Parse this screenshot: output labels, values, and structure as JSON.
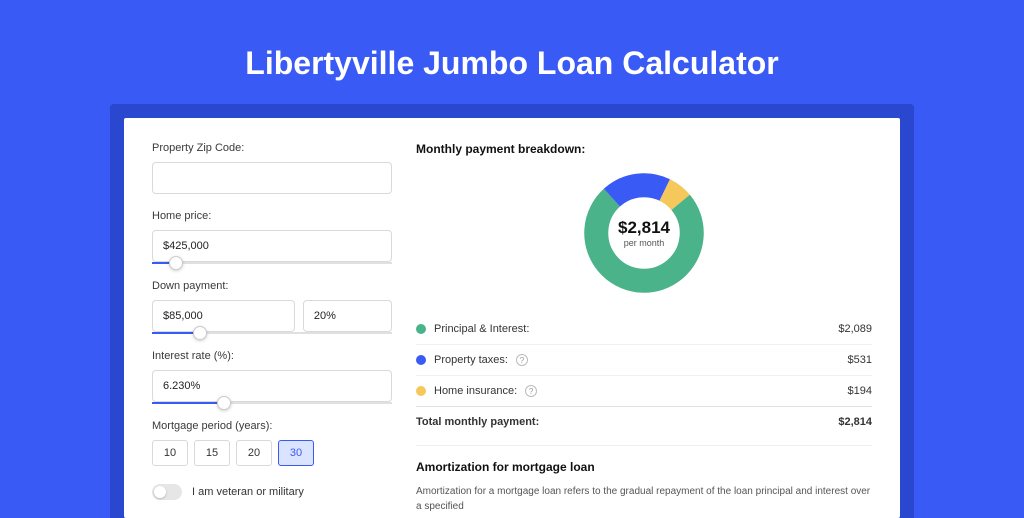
{
  "title": "Libertyville Jumbo Loan Calculator",
  "colors": {
    "page_bg": "#3a5af5",
    "band_bg": "#2a47d0",
    "card_bg": "#ffffff",
    "accent": "#3a5af5",
    "border": "#d9d9d9",
    "text": "#333333"
  },
  "form": {
    "zip": {
      "label": "Property Zip Code:",
      "value": ""
    },
    "home_price": {
      "label": "Home price:",
      "value": "$425,000",
      "slider_pct": 10
    },
    "down_payment": {
      "label": "Down payment:",
      "amount": "$85,000",
      "percent": "20%",
      "slider_pct": 20
    },
    "interest_rate": {
      "label": "Interest rate (%):",
      "value": "6.230%",
      "slider_pct": 30
    },
    "mortgage_period": {
      "label": "Mortgage period (years):",
      "options": [
        "10",
        "15",
        "20",
        "30"
      ],
      "active": "30"
    },
    "veteran_toggle": {
      "label": "I am veteran or military",
      "on": false
    }
  },
  "breakdown": {
    "heading": "Monthly payment breakdown:",
    "donut": {
      "total_label": "$2,814",
      "sub_label": "per month",
      "slices": [
        {
          "name": "principal_interest",
          "value": 2089,
          "color": "#4ab38a"
        },
        {
          "name": "property_taxes",
          "value": 531,
          "color": "#3a5af5"
        },
        {
          "name": "home_insurance",
          "value": 194,
          "color": "#f5c85b"
        }
      ]
    },
    "rows": [
      {
        "label": "Principal & Interest:",
        "value": "$2,089",
        "color": "#4ab38a",
        "info": false
      },
      {
        "label": "Property taxes:",
        "value": "$531",
        "color": "#3a5af5",
        "info": true
      },
      {
        "label": "Home insurance:",
        "value": "$194",
        "color": "#f5c85b",
        "info": true
      }
    ],
    "total": {
      "label": "Total monthly payment:",
      "value": "$2,814"
    }
  },
  "amortization": {
    "heading": "Amortization for mortgage loan",
    "text": "Amortization for a mortgage loan refers to the gradual repayment of the loan principal and interest over a specified"
  }
}
